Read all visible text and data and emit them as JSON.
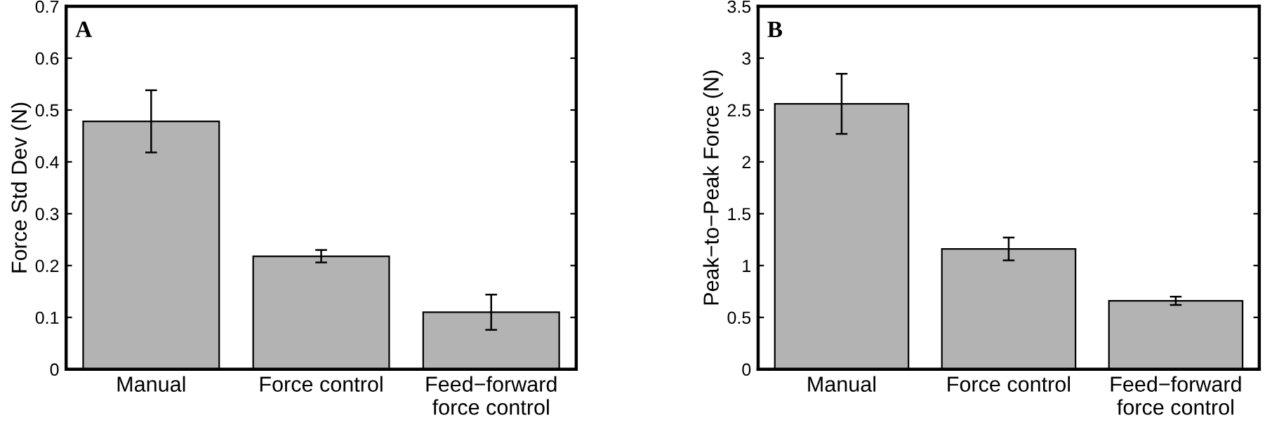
{
  "chart_data": [
    {
      "type": "bar",
      "categories": [
        "Manual",
        "Force control",
        "Feed−forward\nforce control"
      ],
      "values": [
        0.478,
        0.218,
        0.11
      ],
      "errors": [
        0.06,
        0.012,
        0.034
      ],
      "color": "#b3b3b3",
      "ylabel": "Force Std Dev (N)",
      "annotations": [
        "A"
      ],
      "ylim": [
        0,
        0.7
      ],
      "yticks": [
        0,
        0.1,
        0.2,
        0.3,
        0.4,
        0.5,
        0.6,
        0.7
      ],
      "grid": false,
      "legend": false
    },
    {
      "type": "bar",
      "categories": [
        "Manual",
        "Force control",
        "Feed−forward\nforce control"
      ],
      "values": [
        2.56,
        1.16,
        0.66
      ],
      "errors": [
        0.29,
        0.11,
        0.04
      ],
      "color": "#b3b3b3",
      "ylabel": "Peak−to−Peak Force (N)",
      "annotations": [
        "B"
      ],
      "ylim": [
        0,
        3.5
      ],
      "yticks": [
        0,
        0.5,
        1,
        1.5,
        2,
        2.5,
        3,
        3.5
      ],
      "grid": false,
      "legend": false
    }
  ]
}
